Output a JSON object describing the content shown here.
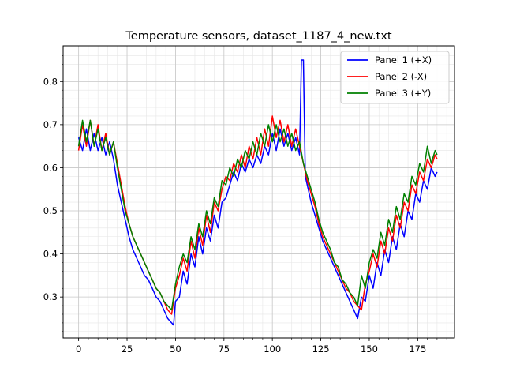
{
  "chart_data": {
    "type": "line",
    "title": "Temperature sensors, dataset_1187_4_new.txt",
    "xlabel": "",
    "ylabel": "",
    "xlim": [
      -8,
      194
    ],
    "ylim": [
      0.205,
      0.883
    ],
    "xticks": [
      0,
      25,
      50,
      75,
      100,
      125,
      150,
      175
    ],
    "yticks": [
      0.3,
      0.4,
      0.5,
      0.6,
      0.7,
      0.8
    ],
    "grid": "major and minor",
    "legend_position": "upper right",
    "series": [
      {
        "name": "Panel 1 (+X)",
        "color": "#0000ff",
        "x": [
          0,
          2,
          4,
          6,
          8,
          10,
          12,
          14,
          16,
          18,
          20,
          22,
          24,
          26,
          28,
          30,
          32,
          34,
          36,
          38,
          40,
          42,
          44,
          46,
          48,
          49,
          50,
          52,
          54,
          56,
          58,
          60,
          62,
          64,
          66,
          68,
          70,
          72,
          74,
          76,
          78,
          80,
          82,
          84,
          86,
          88,
          90,
          92,
          94,
          96,
          98,
          100,
          102,
          104,
          106,
          108,
          110,
          112,
          114,
          115,
          116,
          117,
          118,
          120,
          122,
          124,
          126,
          128,
          130,
          132,
          134,
          136,
          138,
          140,
          142,
          144,
          146,
          148,
          150,
          152,
          154,
          156,
          158,
          160,
          162,
          164,
          166,
          168,
          170,
          172,
          174,
          176,
          178,
          180,
          182,
          184,
          185
        ],
        "y": [
          0.67,
          0.64,
          0.69,
          0.64,
          0.68,
          0.64,
          0.67,
          0.63,
          0.66,
          0.62,
          0.56,
          0.52,
          0.48,
          0.44,
          0.41,
          0.39,
          0.37,
          0.35,
          0.34,
          0.32,
          0.3,
          0.29,
          0.27,
          0.25,
          0.24,
          0.235,
          0.29,
          0.3,
          0.36,
          0.33,
          0.4,
          0.37,
          0.44,
          0.4,
          0.46,
          0.43,
          0.49,
          0.46,
          0.52,
          0.53,
          0.56,
          0.59,
          0.57,
          0.61,
          0.59,
          0.62,
          0.6,
          0.63,
          0.61,
          0.65,
          0.63,
          0.68,
          0.64,
          0.69,
          0.65,
          0.68,
          0.64,
          0.67,
          0.63,
          0.85,
          0.85,
          0.58,
          0.56,
          0.52,
          0.49,
          0.46,
          0.43,
          0.41,
          0.39,
          0.37,
          0.35,
          0.33,
          0.31,
          0.29,
          0.27,
          0.25,
          0.3,
          0.29,
          0.35,
          0.32,
          0.38,
          0.35,
          0.41,
          0.38,
          0.44,
          0.41,
          0.47,
          0.44,
          0.5,
          0.48,
          0.54,
          0.52,
          0.57,
          0.55,
          0.6,
          0.58,
          0.59
        ]
      },
      {
        "name": "Panel 2 (-X)",
        "color": "#ff0000",
        "x": [
          0,
          2,
          4,
          6,
          8,
          10,
          12,
          14,
          16,
          18,
          20,
          22,
          24,
          26,
          28,
          30,
          32,
          34,
          36,
          38,
          40,
          42,
          44,
          46,
          48,
          50,
          52,
          54,
          56,
          58,
          60,
          62,
          64,
          66,
          68,
          70,
          72,
          74,
          76,
          78,
          80,
          82,
          84,
          86,
          88,
          90,
          92,
          94,
          96,
          98,
          100,
          102,
          104,
          106,
          108,
          110,
          112,
          114,
          116,
          118,
          120,
          122,
          124,
          126,
          128,
          130,
          132,
          134,
          136,
          138,
          140,
          142,
          144,
          146,
          148,
          150,
          152,
          154,
          156,
          158,
          160,
          162,
          164,
          166,
          168,
          170,
          172,
          174,
          176,
          178,
          180,
          182,
          184,
          185
        ],
        "y": [
          0.64,
          0.7,
          0.65,
          0.71,
          0.65,
          0.7,
          0.64,
          0.68,
          0.63,
          0.66,
          0.61,
          0.56,
          0.51,
          0.47,
          0.44,
          0.42,
          0.4,
          0.38,
          0.36,
          0.34,
          0.32,
          0.31,
          0.29,
          0.27,
          0.26,
          0.32,
          0.35,
          0.39,
          0.36,
          0.43,
          0.39,
          0.46,
          0.42,
          0.49,
          0.45,
          0.52,
          0.5,
          0.55,
          0.58,
          0.57,
          0.61,
          0.59,
          0.63,
          0.6,
          0.65,
          0.62,
          0.67,
          0.63,
          0.69,
          0.65,
          0.72,
          0.67,
          0.71,
          0.66,
          0.7,
          0.65,
          0.69,
          0.65,
          0.61,
          0.57,
          0.54,
          0.51,
          0.47,
          0.44,
          0.42,
          0.4,
          0.38,
          0.36,
          0.34,
          0.32,
          0.31,
          0.29,
          0.28,
          0.27,
          0.33,
          0.36,
          0.4,
          0.37,
          0.43,
          0.4,
          0.46,
          0.43,
          0.49,
          0.46,
          0.52,
          0.5,
          0.56,
          0.54,
          0.59,
          0.57,
          0.62,
          0.6,
          0.63,
          0.62
        ]
      },
      {
        "name": "Panel 3 (+Y)",
        "color": "#008000",
        "x": [
          0,
          2,
          4,
          6,
          8,
          10,
          12,
          14,
          16,
          18,
          20,
          22,
          24,
          26,
          28,
          30,
          32,
          34,
          36,
          38,
          40,
          42,
          44,
          46,
          48,
          50,
          52,
          54,
          56,
          58,
          60,
          62,
          64,
          66,
          68,
          70,
          72,
          74,
          76,
          78,
          80,
          82,
          84,
          86,
          88,
          90,
          92,
          94,
          96,
          98,
          100,
          102,
          104,
          106,
          108,
          110,
          112,
          114,
          116,
          118,
          120,
          122,
          124,
          126,
          128,
          130,
          132,
          134,
          136,
          138,
          140,
          142,
          144,
          146,
          148,
          150,
          152,
          154,
          156,
          158,
          160,
          162,
          164,
          166,
          168,
          170,
          172,
          174,
          176,
          178,
          180,
          182,
          184,
          185
        ],
        "y": [
          0.65,
          0.71,
          0.66,
          0.71,
          0.65,
          0.69,
          0.64,
          0.67,
          0.63,
          0.66,
          0.6,
          0.55,
          0.5,
          0.47,
          0.44,
          0.42,
          0.4,
          0.38,
          0.36,
          0.34,
          0.32,
          0.31,
          0.29,
          0.28,
          0.27,
          0.33,
          0.37,
          0.4,
          0.38,
          0.44,
          0.41,
          0.47,
          0.44,
          0.5,
          0.47,
          0.53,
          0.51,
          0.57,
          0.56,
          0.6,
          0.58,
          0.62,
          0.6,
          0.64,
          0.62,
          0.66,
          0.63,
          0.68,
          0.65,
          0.7,
          0.66,
          0.7,
          0.66,
          0.69,
          0.65,
          0.68,
          0.64,
          0.66,
          0.61,
          0.58,
          0.55,
          0.52,
          0.48,
          0.45,
          0.43,
          0.41,
          0.38,
          0.37,
          0.34,
          0.33,
          0.31,
          0.3,
          0.28,
          0.35,
          0.32,
          0.38,
          0.41,
          0.39,
          0.45,
          0.42,
          0.48,
          0.45,
          0.51,
          0.48,
          0.54,
          0.52,
          0.58,
          0.56,
          0.61,
          0.59,
          0.65,
          0.61,
          0.64,
          0.63
        ]
      }
    ]
  }
}
